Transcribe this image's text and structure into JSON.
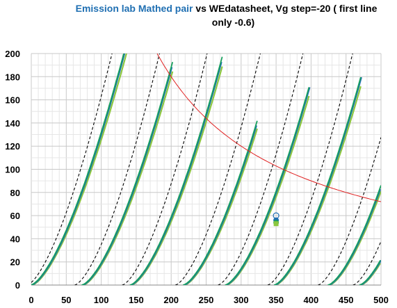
{
  "chart_data": {
    "type": "line",
    "title_parts": [
      {
        "text": "Emission lab Mathed pair",
        "accent": true
      },
      {
        "text": " vs WEdatasheet, Vg step=-20 ( first line",
        "accent": false
      }
    ],
    "title_line2": "only -0.6)",
    "xlim": [
      0,
      500
    ],
    "ylim": [
      0,
      200
    ],
    "x_ticks": [
      "0",
      "50",
      "100",
      "150",
      "200",
      "250",
      "300",
      "350",
      "400",
      "450",
      "500"
    ],
    "y_ticks": [
      "0",
      "20",
      "40",
      "60",
      "80",
      "100",
      "120",
      "140",
      "160",
      "180",
      "200"
    ],
    "grid": true,
    "legend": "none",
    "colors": {
      "datasheet": "#000000",
      "measured_a": "#1f6fb2",
      "measured_b": "#17a05d",
      "measured_c": "#8cc63f",
      "dissipation": "#e02020"
    },
    "curve_families": [
      {
        "offset": 0,
        "datasheet_offset": -6,
        "xmax_meas": 138,
        "xmax_ds": 138
      },
      {
        "offset": 73,
        "datasheet_offset": 62,
        "xmax_meas": 202,
        "xmax_ds": 210
      },
      {
        "offset": 142,
        "datasheet_offset": 130,
        "xmax_meas": 273,
        "xmax_ds": 282
      },
      {
        "offset": 218,
        "datasheet_offset": 206,
        "xmax_meas": 323,
        "xmax_ds": 340
      },
      {
        "offset": 278,
        "datasheet_offset": 267,
        "xmax_meas": 398,
        "xmax_ds": 415
      },
      {
        "offset": 348,
        "datasheet_offset": 338,
        "xmax_meas": 472,
        "xmax_ds": 500
      },
      {
        "offset": 425,
        "datasheet_offset": 410,
        "xmax_meas": 500,
        "xmax_ds": 500
      },
      {
        "offset": 470,
        "datasheet_offset": 460,
        "xmax_meas": 500,
        "xmax_ds": 500
      }
    ],
    "dissipation_curve": {
      "power_w": 36,
      "x_start": 180,
      "x_end": 500
    },
    "markers": [
      {
        "x": 350,
        "y": 60,
        "shape": "ring",
        "color": "#1f6fb2"
      },
      {
        "x": 350,
        "y": 56,
        "shape": "dot",
        "color": "#1f6fb2"
      },
      {
        "x": 350,
        "y": 54,
        "shape": "dot",
        "color": "#17a05d"
      },
      {
        "x": 350,
        "y": 53,
        "shape": "square",
        "color": "#8cc63f"
      }
    ]
  }
}
